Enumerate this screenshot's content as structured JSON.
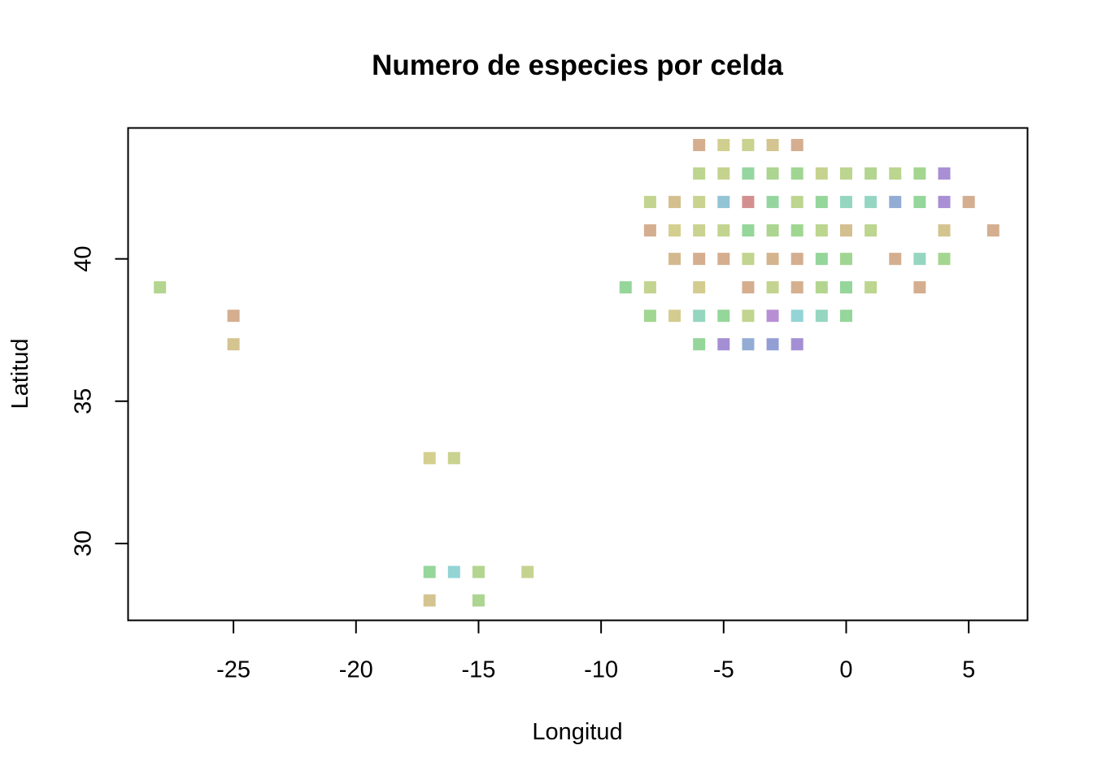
{
  "chart_data": {
    "type": "scatter",
    "title": "Numero de especies por celda",
    "xlabel": "Longitud",
    "ylabel": "Latitud",
    "xlim": [
      -29.3,
      7.4
    ],
    "ylim": [
      27.3,
      44.6
    ],
    "xticks": [
      -25,
      -20,
      -15,
      -10,
      -5,
      0,
      5
    ],
    "yticks": [
      30,
      35,
      40
    ],
    "grid": false,
    "legend": "none",
    "marker": "square",
    "points": [
      {
        "x": -6,
        "y": 44,
        "color": "#d4ae8f"
      },
      {
        "x": -5,
        "y": 44,
        "color": "#d0cf8f"
      },
      {
        "x": -4,
        "y": 44,
        "color": "#c9d28f"
      },
      {
        "x": -3,
        "y": 44,
        "color": "#d4c48f"
      },
      {
        "x": -2,
        "y": 44,
        "color": "#d5ad8f"
      },
      {
        "x": -6,
        "y": 43,
        "color": "#bcd58f"
      },
      {
        "x": -5,
        "y": 43,
        "color": "#c6d38f"
      },
      {
        "x": -4,
        "y": 43,
        "color": "#95d6a0"
      },
      {
        "x": -3,
        "y": 43,
        "color": "#abd590"
      },
      {
        "x": -2,
        "y": 43,
        "color": "#a0d692"
      },
      {
        "x": -1,
        "y": 43,
        "color": "#c6d38f"
      },
      {
        "x": 0,
        "y": 43,
        "color": "#bcd58f"
      },
      {
        "x": 1,
        "y": 43,
        "color": "#b3d58f"
      },
      {
        "x": 2,
        "y": 43,
        "color": "#bcd58f"
      },
      {
        "x": 3,
        "y": 43,
        "color": "#a4d690"
      },
      {
        "x": 4,
        "y": 43,
        "color": "#a98fd3"
      },
      {
        "x": -8,
        "y": 42,
        "color": "#c2d48f"
      },
      {
        "x": -7,
        "y": 42,
        "color": "#d4c08f"
      },
      {
        "x": -6,
        "y": 42,
        "color": "#c9d28f"
      },
      {
        "x": -5,
        "y": 42,
        "color": "#93c4d4"
      },
      {
        "x": -4,
        "y": 42,
        "color": "#d48f8f"
      },
      {
        "x": -3,
        "y": 42,
        "color": "#95d6a0"
      },
      {
        "x": -2,
        "y": 42,
        "color": "#bcd58f"
      },
      {
        "x": -1,
        "y": 42,
        "color": "#95d69a"
      },
      {
        "x": 0,
        "y": 42,
        "color": "#95d6c0"
      },
      {
        "x": 1,
        "y": 42,
        "color": "#95d6c2"
      },
      {
        "x": 2,
        "y": 42,
        "color": "#93acd4"
      },
      {
        "x": 3,
        "y": 42,
        "color": "#95d69a"
      },
      {
        "x": 4,
        "y": 42,
        "color": "#a98fd3"
      },
      {
        "x": 5,
        "y": 42,
        "color": "#d4ae8f"
      },
      {
        "x": -8,
        "y": 41,
        "color": "#d4ae8f"
      },
      {
        "x": -7,
        "y": 41,
        "color": "#d4cf8f"
      },
      {
        "x": -6,
        "y": 41,
        "color": "#c9d28f"
      },
      {
        "x": -5,
        "y": 41,
        "color": "#c2d48f"
      },
      {
        "x": -4,
        "y": 41,
        "color": "#95d69a"
      },
      {
        "x": -3,
        "y": 41,
        "color": "#abd590"
      },
      {
        "x": -2,
        "y": 41,
        "color": "#9fd690"
      },
      {
        "x": -1,
        "y": 41,
        "color": "#bcd58f"
      },
      {
        "x": 0,
        "y": 41,
        "color": "#d4bf8f"
      },
      {
        "x": 1,
        "y": 41,
        "color": "#bcd58f"
      },
      {
        "x": 4,
        "y": 41,
        "color": "#d4c48f"
      },
      {
        "x": 6,
        "y": 41,
        "color": "#d4ae8f"
      },
      {
        "x": -7,
        "y": 40,
        "color": "#d4b98f"
      },
      {
        "x": -6,
        "y": 40,
        "color": "#d4ae8f"
      },
      {
        "x": -5,
        "y": 40,
        "color": "#d4ae8f"
      },
      {
        "x": -4,
        "y": 40,
        "color": "#c2d48f"
      },
      {
        "x": -3,
        "y": 40,
        "color": "#d4b48f"
      },
      {
        "x": -2,
        "y": 40,
        "color": "#d4ae8f"
      },
      {
        "x": -1,
        "y": 40,
        "color": "#95d69a"
      },
      {
        "x": 0,
        "y": 40,
        "color": "#a0d692"
      },
      {
        "x": 2,
        "y": 40,
        "color": "#d4ae8f"
      },
      {
        "x": 3,
        "y": 40,
        "color": "#95d6c0"
      },
      {
        "x": 4,
        "y": 40,
        "color": "#a4d690"
      },
      {
        "x": -9,
        "y": 39,
        "color": "#95d69a"
      },
      {
        "x": -8,
        "y": 39,
        "color": "#c2d48f"
      },
      {
        "x": -6,
        "y": 39,
        "color": "#d4cc8f"
      },
      {
        "x": -4,
        "y": 39,
        "color": "#d4ae8f"
      },
      {
        "x": -3,
        "y": 39,
        "color": "#c2d48f"
      },
      {
        "x": -2,
        "y": 39,
        "color": "#d4b08f"
      },
      {
        "x": -1,
        "y": 39,
        "color": "#b3d58f"
      },
      {
        "x": 0,
        "y": 39,
        "color": "#95d69a"
      },
      {
        "x": 1,
        "y": 39,
        "color": "#bcd58f"
      },
      {
        "x": 3,
        "y": 39,
        "color": "#d4ae8f"
      },
      {
        "x": -8,
        "y": 38,
        "color": "#a0d692"
      },
      {
        "x": -7,
        "y": 38,
        "color": "#d4cc8f"
      },
      {
        "x": -6,
        "y": 38,
        "color": "#95d6c0"
      },
      {
        "x": -5,
        "y": 38,
        "color": "#95d69a"
      },
      {
        "x": -4,
        "y": 38,
        "color": "#c2d48f"
      },
      {
        "x": -3,
        "y": 38,
        "color": "#b98fd3"
      },
      {
        "x": -2,
        "y": 38,
        "color": "#95d4d4"
      },
      {
        "x": -1,
        "y": 38,
        "color": "#95d6c0"
      },
      {
        "x": 0,
        "y": 38,
        "color": "#95d69a"
      },
      {
        "x": -6,
        "y": 37,
        "color": "#95d69a"
      },
      {
        "x": -5,
        "y": 37,
        "color": "#a48fd4"
      },
      {
        "x": -4,
        "y": 37,
        "color": "#93acd4"
      },
      {
        "x": -3,
        "y": 37,
        "color": "#939fd4"
      },
      {
        "x": -2,
        "y": 37,
        "color": "#a48fd4"
      },
      {
        "x": -28,
        "y": 39,
        "color": "#b3d58f"
      },
      {
        "x": -25,
        "y": 38,
        "color": "#d4ae8f"
      },
      {
        "x": -25,
        "y": 37,
        "color": "#d4c48f"
      },
      {
        "x": -17,
        "y": 33,
        "color": "#d4cf8f"
      },
      {
        "x": -16,
        "y": 33,
        "color": "#c9d28f"
      },
      {
        "x": -17,
        "y": 29,
        "color": "#95d69a"
      },
      {
        "x": -16,
        "y": 29,
        "color": "#95d4d4"
      },
      {
        "x": -15,
        "y": 29,
        "color": "#b3d58f"
      },
      {
        "x": -13,
        "y": 29,
        "color": "#c6d38f"
      },
      {
        "x": -17,
        "y": 28,
        "color": "#d4c48f"
      },
      {
        "x": -15,
        "y": 28,
        "color": "#abd590"
      }
    ]
  }
}
